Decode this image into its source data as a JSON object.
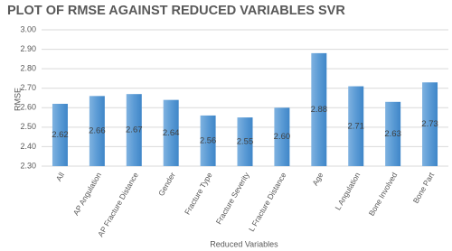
{
  "chart_data": {
    "type": "bar",
    "title": "PLOT OF RMSE AGAINST REDUCED VARIABLES SVR",
    "x_label": "Reduced Variables",
    "y_label": "RMSE",
    "categories": [
      "All",
      "AP Angulation",
      "AP Fracture Distance",
      "Gender",
      "Fracture Type",
      "Fracture Severity",
      "L Fracture Distance",
      "Age",
      "L Angulation",
      "Bone Involved",
      "Bone Part"
    ],
    "values": [
      2.62,
      2.66,
      2.67,
      2.64,
      2.56,
      2.55,
      2.6,
      2.88,
      2.71,
      2.63,
      2.73
    ],
    "value_labels": [
      "2.62",
      "2.66",
      "2.67",
      "2.64",
      "2.56",
      "2.55",
      "2.60",
      "2.88",
      "2.71",
      "2.63",
      "2.73"
    ],
    "color": "#5b9bd5",
    "ylim": [
      2.3,
      3.0
    ],
    "yticks": [
      {
        "value": 2.3,
        "label": "2.30"
      },
      {
        "value": 2.4,
        "label": "2.40"
      },
      {
        "value": 2.5,
        "label": "2.50"
      },
      {
        "value": 2.6,
        "label": "2.60"
      },
      {
        "value": 2.7,
        "label": "2.70"
      },
      {
        "value": 2.8,
        "label": "2.80"
      },
      {
        "value": 2.9,
        "label": "2.90"
      },
      {
        "value": 3.0,
        "label": "3.00"
      }
    ],
    "grid": true
  }
}
